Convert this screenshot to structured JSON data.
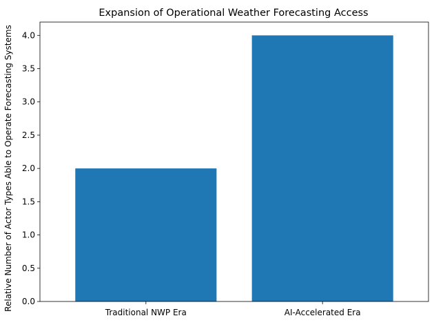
{
  "chart_data": {
    "type": "bar",
    "title": "Expansion of Operational Weather Forecasting Access",
    "xlabel": "",
    "ylabel": "Relative Number of Actor Types Able to Operate Forecasting Systems",
    "categories": [
      "Traditional NWP Era",
      "AI-Accelerated Era"
    ],
    "values": [
      2,
      4
    ],
    "ylim": [
      0,
      4.2
    ],
    "yticks": [
      0.0,
      0.5,
      1.0,
      1.5,
      2.0,
      2.5,
      3.0,
      3.5,
      4.0
    ],
    "ytick_labels": [
      "0.0",
      "0.5",
      "1.0",
      "1.5",
      "2.0",
      "2.5",
      "3.0",
      "3.5",
      "4.0"
    ],
    "bar_color": "#1f77b4",
    "grid": false,
    "legend": "none"
  }
}
